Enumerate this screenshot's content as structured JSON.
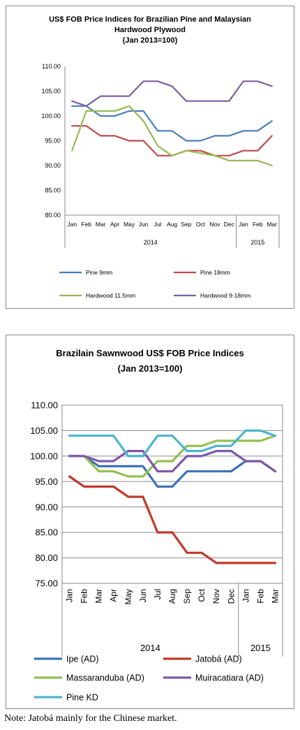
{
  "chart_data": [
    {
      "type": "line",
      "title": "US$ FOB Price Indices for Brazilian Pine and Malaysian Hardwood Plywood",
      "title_lines": [
        "US$ FOB Price Indices for Brazilian Pine and Malaysian",
        "Hardwood Plywood",
        "(Jan 2013=100)"
      ],
      "subtitle": "(Jan 2013=100)",
      "categories": [
        "Jan",
        "Feb",
        "Mar",
        "Apr",
        "May",
        "Jun",
        "Jul",
        "Aug",
        "Sep",
        "Oct",
        "Nov",
        "Dec",
        "Jan",
        "Feb",
        "Mar"
      ],
      "year_groups": [
        {
          "label": "2014",
          "count": 12
        },
        {
          "label": "2015",
          "count": 3
        }
      ],
      "ylim": [
        80,
        110
      ],
      "yticks": [
        "80.00",
        "85.00",
        "90.00",
        "95.00",
        "100.00",
        "105.00",
        "110.00"
      ],
      "grid": false,
      "legend_position": "bottom",
      "series": [
        {
          "name": "Pine 9mm",
          "color": "#4a7ebb",
          "values": [
            102,
            102,
            100,
            100,
            101,
            101,
            97,
            97,
            95,
            95,
            96,
            96,
            97,
            97,
            99
          ]
        },
        {
          "name": "Pine 18mm",
          "color": "#be4b48",
          "values": [
            98,
            98,
            96,
            96,
            95,
            95,
            92,
            92,
            93,
            93,
            92,
            92,
            93,
            93,
            96
          ]
        },
        {
          "name": "Hardwood 11.5mm",
          "color": "#98b954",
          "values": [
            93,
            101,
            101,
            101,
            102,
            99,
            94,
            92,
            93,
            92.5,
            92,
            91,
            91,
            91,
            90
          ]
        },
        {
          "name": "Hardwood 9-18mm",
          "color": "#7d60a0",
          "values": [
            103,
            102,
            104,
            104,
            104,
            107,
            107,
            106,
            103,
            103,
            103,
            103,
            107,
            107,
            106
          ]
        }
      ]
    },
    {
      "type": "line",
      "title": "Brazilain Sawnwood US$ FOB Price Indices",
      "title_lines": [
        "Brazilain Sawnwood US$ FOB Price Indices",
        "(Jan 2013=100)"
      ],
      "subtitle": "(Jan 2013=100)",
      "categories": [
        "Jan",
        "Feb",
        "Mar",
        "Apr",
        "May",
        "Jun",
        "Jul",
        "Aug",
        "Sep",
        "Oct",
        "Nov",
        "Dec",
        "Jan",
        "Feb",
        "Mar"
      ],
      "year_groups": [
        {
          "label": "2014",
          "count": 12
        },
        {
          "label": "2015",
          "count": 3
        }
      ],
      "ylim": [
        75,
        110
      ],
      "yticks": [
        "75.00",
        "80.00",
        "85.00",
        "90.00",
        "95.00",
        "100.00",
        "105.00",
        "110.00"
      ],
      "grid": true,
      "legend_position": "bottom",
      "series": [
        {
          "name": "Ipe (AD)",
          "color": "#3a73b8",
          "values": [
            100,
            100,
            98,
            98,
            98,
            98,
            94,
            94,
            97,
            97,
            97,
            97,
            99,
            99,
            97
          ]
        },
        {
          "name": "Jatobá (AD)",
          "color": "#c0392b",
          "values": [
            96,
            94,
            94,
            94,
            92,
            92,
            85,
            85,
            81,
            81,
            79,
            79,
            79,
            79,
            79
          ]
        },
        {
          "name": "Massaranduba (AD)",
          "color": "#92c04f",
          "values": [
            100,
            100,
            97,
            97,
            96,
            96,
            99,
            99,
            102,
            102,
            103,
            103,
            103,
            103,
            104
          ]
        },
        {
          "name": "Muiracatiara (AD)",
          "color": "#7e57a8",
          "values": [
            100,
            100,
            99,
            99,
            101,
            101,
            97,
            97,
            100,
            100,
            101,
            101,
            99,
            99,
            97
          ]
        },
        {
          "name": "Pine KD",
          "color": "#4bb4cf",
          "values": [
            104,
            104,
            104,
            104,
            100,
            100,
            104,
            104,
            101,
            101,
            102,
            102,
            105,
            105,
            104
          ]
        }
      ]
    }
  ],
  "note": "Note: Jatobá mainly for the Chinese market."
}
